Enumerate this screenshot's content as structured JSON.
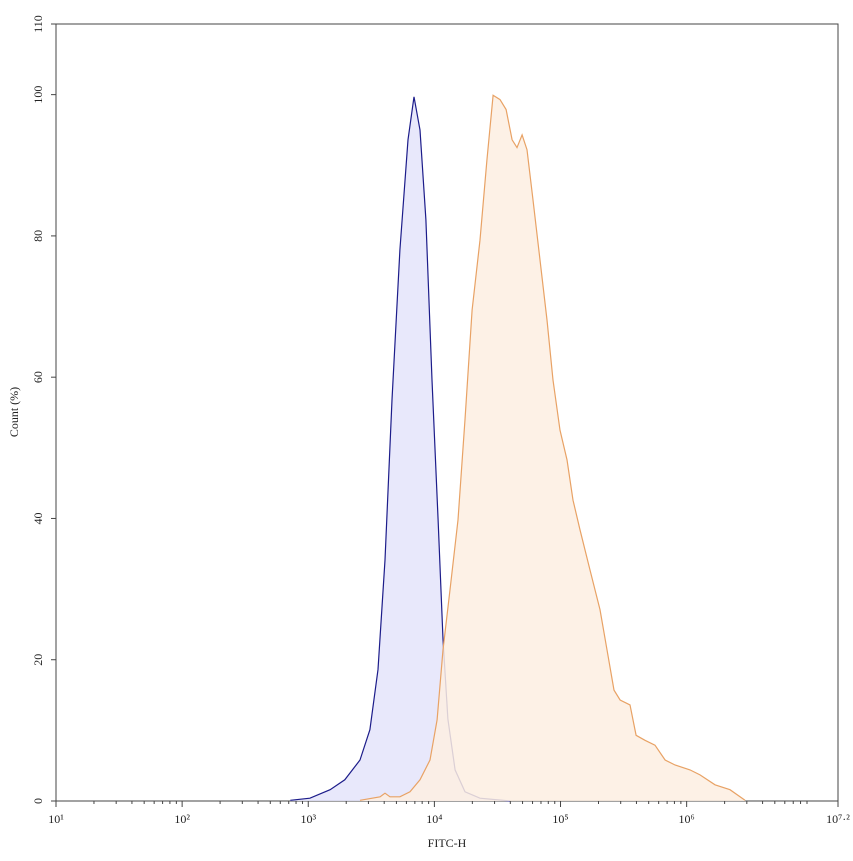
{
  "chart_data": {
    "type": "area",
    "x_label": "FITC-H",
    "y_label": "Count (%)",
    "xscale": "log",
    "xlim": [
      10,
      15848932
    ],
    "ylim": [
      0,
      110
    ],
    "xticks": [
      {
        "value": 10,
        "label": "10¹"
      },
      {
        "value": 100,
        "label": "10²"
      },
      {
        "value": 1000,
        "label": "10³"
      },
      {
        "value": 10000,
        "label": "10⁴"
      },
      {
        "value": 100000,
        "label": "10⁵"
      },
      {
        "value": 1000000,
        "label": "10⁶"
      },
      {
        "value": 15848932,
        "label": "10⁷·²"
      }
    ],
    "yticks": [
      0,
      20,
      40,
      60,
      80,
      100,
      110
    ],
    "series": [
      {
        "color": "#1c1c8a",
        "fill": "#e4e4fa",
        "x": [
          720,
          1030,
          1490,
          1950,
          2570,
          3080,
          3570,
          4060,
          4610,
          5330,
          6180,
          6890,
          7690,
          8570,
          9570,
          10700,
          11700,
          12800,
          14600,
          17500,
          23000,
          39800
        ],
        "values": [
          0.1,
          0.4,
          1.6,
          3,
          5.8,
          10.1,
          18.6,
          34.1,
          56.8,
          78,
          93.6,
          99.7,
          95,
          82.3,
          59.6,
          39.8,
          22.9,
          11.6,
          4.4,
          1.3,
          0.4,
          0
        ]
      },
      {
        "color": "#e8a265",
        "fill": "#fdefe2",
        "x": [
          2570,
          3710,
          4060,
          4450,
          5330,
          6410,
          7690,
          9230,
          10500,
          11700,
          13300,
          15400,
          17500,
          19900,
          23000,
          26100,
          29200,
          33100,
          37000,
          41300,
          45200,
          49600,
          54200,
          60500,
          68700,
          78200,
          87100,
          99100,
          112500,
          125600,
          142600,
          171400,
          205600,
          233800,
          265500,
          296500,
          355600,
          397200,
          467700,
          561000,
          674500,
          809100,
          1064000,
          1276000,
          1679000,
          2208000,
          2904000
        ],
        "values": [
          0.1,
          0.6,
          1.1,
          0.6,
          0.6,
          1.3,
          3,
          5.8,
          11.5,
          21.4,
          29.9,
          39.8,
          54,
          69.5,
          79.4,
          90.7,
          99.9,
          99.3,
          97.9,
          93.6,
          92.5,
          94.3,
          92.2,
          85.1,
          76.6,
          68.1,
          59.6,
          52.5,
          48.3,
          42.6,
          38.4,
          32.7,
          27.1,
          21.4,
          15.7,
          14.3,
          13.6,
          9.3,
          8.6,
          7.9,
          5.8,
          5.1,
          4.4,
          3.7,
          2.3,
          1.6,
          0.1
        ]
      }
    ]
  }
}
